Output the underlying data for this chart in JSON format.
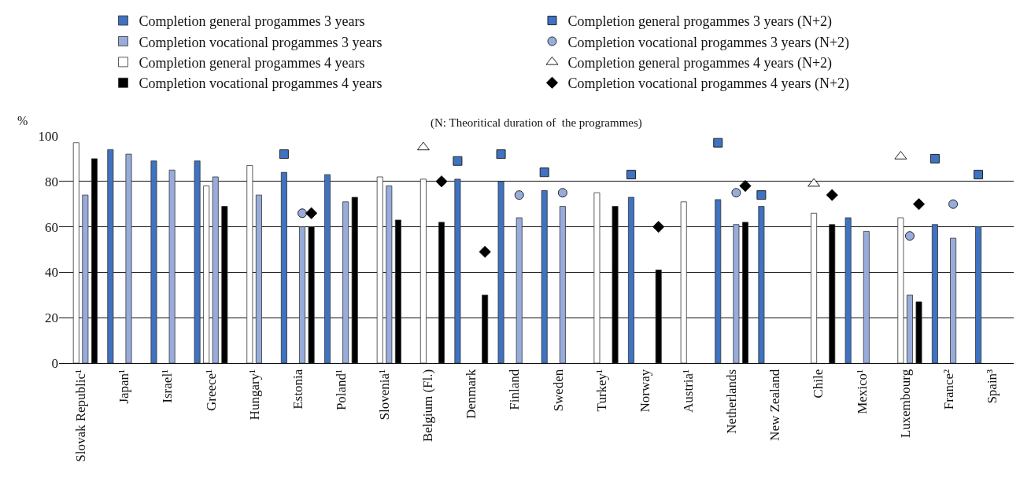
{
  "chart_data": {
    "type": "bar",
    "ylabel": "%",
    "annotations": [
      "(N: Theoritical duration of  the programmes)"
    ],
    "categories": [
      "Slovak Republic¹",
      "Japan¹",
      "Israel¹",
      "Greece¹",
      "Hungary¹",
      "Estonia",
      "Poland¹",
      "Slovenia¹",
      "Belgium (Fl.)",
      "Denmark",
      "Finland",
      "Sweden",
      "Turkey¹",
      "Norway",
      "Austria¹",
      "Netherlands",
      "New Zealand",
      "Chile",
      "Mexico¹",
      "Luxembourg",
      "France²",
      "Spain³"
    ],
    "ylim": [
      0,
      100
    ],
    "yticks": [
      0,
      20,
      40,
      60,
      80,
      100
    ],
    "grid": "y",
    "legend": "top",
    "series": [
      {
        "name": "Completion general progammes 3 years",
        "color": "#3f72c0",
        "values": [
          null,
          94,
          89,
          89,
          null,
          84,
          83,
          null,
          null,
          81,
          80,
          76,
          null,
          73,
          null,
          72,
          69,
          null,
          64,
          null,
          61,
          60
        ]
      },
      {
        "name": "Completion general progammes 3 years (N+2)",
        "type": "scatter",
        "marker": "square",
        "color": "#3f72c0",
        "values": [
          null,
          null,
          null,
          null,
          null,
          92,
          null,
          null,
          null,
          89,
          92,
          84,
          null,
          83,
          null,
          97,
          74,
          null,
          null,
          null,
          90,
          83
        ]
      },
      {
        "name": "Completion vocational progammes 3 years",
        "color": "#98acdc",
        "values": [
          74,
          92,
          85,
          82,
          74,
          60,
          71,
          78,
          null,
          null,
          64,
          69,
          null,
          null,
          null,
          61,
          null,
          null,
          58,
          30,
          55,
          null
        ]
      },
      {
        "name": "Completion vocational progammes 3 years (N+2)",
        "type": "scatter",
        "marker": "circle",
        "color": "#98acdc",
        "values": [
          null,
          null,
          null,
          null,
          null,
          66,
          null,
          null,
          null,
          null,
          74,
          75,
          null,
          null,
          null,
          75,
          null,
          null,
          null,
          56,
          70,
          null
        ]
      },
      {
        "name": "Completion general progammes 4 years",
        "color": "#ffffff",
        "values": [
          97,
          null,
          null,
          78,
          87,
          null,
          null,
          82,
          81,
          null,
          null,
          null,
          75,
          null,
          71,
          null,
          null,
          66,
          null,
          64,
          null,
          null
        ]
      },
      {
        "name": "Completion general progammes 4 years (N+2)",
        "type": "scatter",
        "marker": "triangle",
        "color": "#ffffff",
        "values": [
          null,
          null,
          null,
          null,
          null,
          null,
          null,
          null,
          95,
          null,
          null,
          null,
          null,
          null,
          null,
          null,
          null,
          79,
          null,
          91,
          null,
          null
        ]
      },
      {
        "name": "Completion vocational progammes 4 years",
        "color": "#000000",
        "values": [
          90,
          null,
          null,
          69,
          null,
          60,
          73,
          63,
          62,
          30,
          null,
          null,
          69,
          41,
          null,
          62,
          null,
          61,
          null,
          27,
          null,
          null
        ]
      },
      {
        "name": "Completion vocational progammes 4 years (N+2)",
        "type": "scatter",
        "marker": "diamond",
        "color": "#000000",
        "values": [
          null,
          null,
          null,
          null,
          null,
          66,
          null,
          null,
          80,
          49,
          null,
          null,
          null,
          60,
          null,
          78,
          null,
          74,
          null,
          70,
          null,
          null
        ]
      }
    ]
  }
}
